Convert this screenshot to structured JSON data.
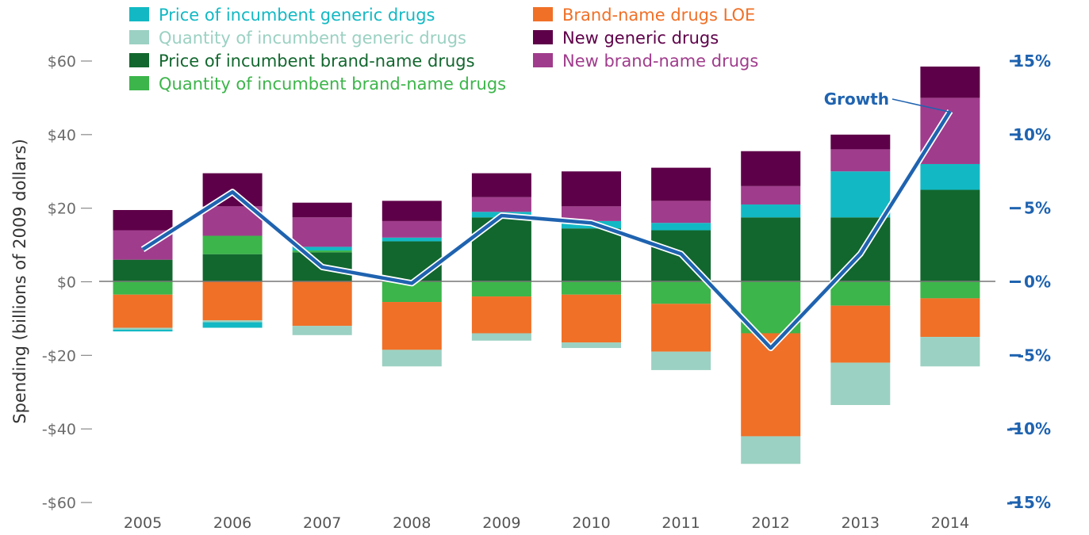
{
  "chart_data": {
    "type": "bar",
    "stacked": true,
    "ylabel": "Spending (billions of 2009 dollars)",
    "ylim": [
      -60,
      60
    ],
    "y_ticks": [
      "$60",
      "$40",
      "$20",
      "$0",
      "-$20",
      "-$40",
      "-$60"
    ],
    "y_tick_values": [
      60,
      40,
      20,
      0,
      -20,
      -40,
      -60
    ],
    "y2lim": [
      -15,
      15
    ],
    "y2_ticks": [
      "15%",
      "10%",
      "5%",
      "0%",
      "-5%",
      "-10%",
      "-15%"
    ],
    "y2_tick_values": [
      15,
      10,
      5,
      0,
      -5,
      -10,
      -15
    ],
    "categories": [
      "2005",
      "2006",
      "2007",
      "2008",
      "2009",
      "2010",
      "2011",
      "2012",
      "2013",
      "2014"
    ],
    "series": [
      {
        "name": "Price of incumbent generic drugs",
        "color": "#12b9c4",
        "values": [
          -0.5,
          -1.5,
          1,
          1,
          1.5,
          2,
          2,
          3.5,
          12.5,
          7
        ]
      },
      {
        "name": "Quantity of incumbent generic drugs",
        "color": "#9bd1c2",
        "values": [
          -0.5,
          -0.5,
          -2.5,
          -4.5,
          -2,
          -1.5,
          -5,
          -7.5,
          -11.5,
          -8
        ]
      },
      {
        "name": "Price of incumbent brand-name drugs",
        "color": "#12672e",
        "values": [
          6,
          7.5,
          8,
          11,
          17.5,
          14.5,
          14,
          17.5,
          17.5,
          25
        ]
      },
      {
        "name": "Quantity of incumbent brand-name drugs",
        "color": "#3cb54a",
        "values": [
          -3.5,
          5,
          0.5,
          -5.5,
          -4,
          -3.5,
          -6,
          -14,
          -6.5,
          -4.5
        ]
      },
      {
        "name": "Brand-name drugs LOE",
        "color": "#f07027",
        "values": [
          -9,
          -10.5,
          -12,
          -13,
          -10,
          -13,
          -13,
          -28,
          -15.5,
          -10.5
        ]
      },
      {
        "name": "New generic drugs",
        "color": "#5e0049",
        "values": [
          5.5,
          9,
          4,
          5.5,
          6.5,
          9.5,
          9,
          9.5,
          4,
          8.5
        ]
      },
      {
        "name": "New brand-name drugs",
        "color": "#a03c8c",
        "values": [
          8,
          8,
          8,
          4.5,
          4,
          4,
          6,
          5,
          6,
          18
        ]
      }
    ],
    "line": {
      "name": "Growth",
      "color": "#1f63b0",
      "values": [
        2.2,
        6.1,
        1.0,
        -0.1,
        4.5,
        4.0,
        1.9,
        -4.5,
        1.9,
        11.6
      ]
    },
    "legend_position": "top"
  },
  "legend": [
    {
      "label": "Price of incumbent generic drugs",
      "color": "#12b9c4"
    },
    {
      "label": "Quantity of incumbent generic drugs",
      "color": "#9bd1c2"
    },
    {
      "label": "Price of incumbent brand-name drugs",
      "color": "#12672e"
    },
    {
      "label": "Quantity of incumbent brand-name drugs",
      "color": "#3cb54a"
    },
    {
      "label": "Brand-name drugs LOE",
      "color": "#f07027"
    },
    {
      "label": "New generic drugs",
      "color": "#5e0049"
    },
    {
      "label": "New brand-name drugs",
      "color": "#a03c8c"
    }
  ],
  "growth_label": "Growth"
}
